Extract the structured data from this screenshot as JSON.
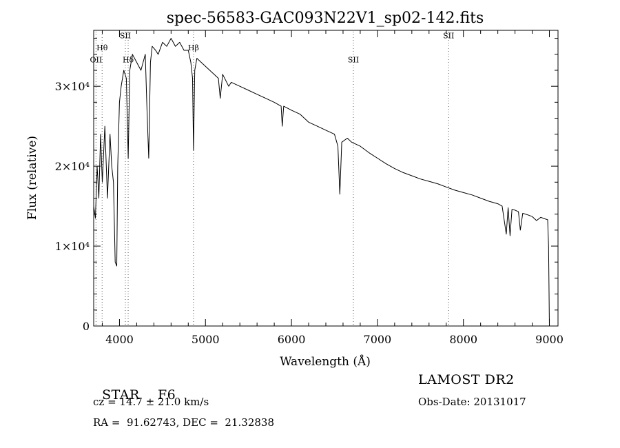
{
  "chart_data": {
    "type": "line",
    "title": "spec-56583-GAC093N22V1_sp02-142.fits",
    "xlabel": "Wavelength (Å)",
    "ylabel": "Flux (relative)",
    "xlim": [
      3700,
      9100
    ],
    "ylim": [
      0,
      37000
    ],
    "xticks": [
      4000,
      5000,
      6000,
      7000,
      8000,
      9000
    ],
    "xtick_labels": [
      "4000",
      "5000",
      "6000",
      "7000",
      "8000",
      "9000"
    ],
    "yticks": [
      0,
      10000,
      20000,
      30000
    ],
    "ytick_labels": [
      "0",
      "1×10⁴",
      "2×10⁴",
      "3×10⁴"
    ],
    "grid": false,
    "series": [
      {
        "x": [
          3700,
          3720,
          3740,
          3760,
          3780,
          3800,
          3830,
          3860,
          3890,
          3910,
          3930,
          3950,
          3968,
          3980,
          4000,
          4020,
          4050,
          4080,
          4101,
          4120,
          4150,
          4200,
          4250,
          4300,
          4320,
          4340,
          4360,
          4380,
          4420,
          4450,
          4500,
          4550,
          4600,
          4650,
          4700,
          4750,
          4800,
          4830,
          4850,
          4861,
          4875,
          4900,
          4950,
          5000,
          5050,
          5100,
          5150,
          5172,
          5200,
          5270,
          5300,
          5400,
          5500,
          5600,
          5700,
          5800,
          5880,
          5893,
          5910,
          6000,
          6100,
          6200,
          6300,
          6400,
          6500,
          6540,
          6563,
          6585,
          6650,
          6700,
          6800,
          6900,
          7000,
          7100,
          7200,
          7300,
          7400,
          7500,
          7600,
          7700,
          7800,
          7900,
          8000,
          8100,
          8200,
          8300,
          8400,
          8450,
          8498,
          8520,
          8542,
          8565,
          8600,
          8640,
          8662,
          8690,
          8750,
          8800,
          8850,
          8900,
          8950,
          8980,
          8990,
          9000
        ],
        "y": [
          15000,
          13500,
          20000,
          16000,
          24000,
          18000,
          25000,
          16000,
          24000,
          20000,
          18000,
          8000,
          7500,
          20000,
          28000,
          30000,
          32000,
          31000,
          21000,
          32000,
          34000,
          33000,
          32000,
          34000,
          27000,
          21000,
          33000,
          35000,
          34500,
          34000,
          35500,
          35000,
          36000,
          35000,
          35500,
          34500,
          34500,
          33000,
          31000,
          22000,
          32000,
          33500,
          33000,
          32500,
          32000,
          31500,
          31000,
          28500,
          31500,
          30000,
          30500,
          30000,
          29500,
          29000,
          28500,
          28000,
          27500,
          25000,
          27500,
          27000,
          26500,
          25500,
          25000,
          24500,
          24000,
          22500,
          16500,
          23000,
          23500,
          23000,
          22500,
          21700,
          21000,
          20300,
          19700,
          19200,
          18800,
          18400,
          18100,
          17800,
          17400,
          17000,
          16700,
          16400,
          16000,
          15600,
          15300,
          15000,
          11500,
          14800,
          11300,
          14600,
          14500,
          14300,
          12000,
          14100,
          13900,
          13700,
          13200,
          13600,
          13400,
          13300,
          10000,
          0
        ]
      }
    ],
    "lines": [
      {
        "label": "OII",
        "x": 3727,
        "label_y": 33000
      },
      {
        "label": "Hθ",
        "x": 3798,
        "label_y": 34500
      },
      {
        "label": "SII",
        "x": 4068,
        "label_y": 36000
      },
      {
        "label": "Hδ",
        "x": 4101,
        "label_y": 33000
      },
      {
        "label": "Hβ",
        "x": 4861,
        "label_y": 34500
      },
      {
        "label": "SII",
        "x": 6720,
        "label_y": 33000
      },
      {
        "label": "SII",
        "x": 7828,
        "label_y": 36000
      }
    ]
  },
  "info": {
    "class_label": "STAR",
    "subclass": "F6",
    "survey": "LAMOST DR2",
    "cz": "cz = 14.7 ± 21.0 km/s",
    "obs_date": "Obs-Date: 20131017",
    "radec": "RA =  91.62743, DEC =  21.32838"
  }
}
